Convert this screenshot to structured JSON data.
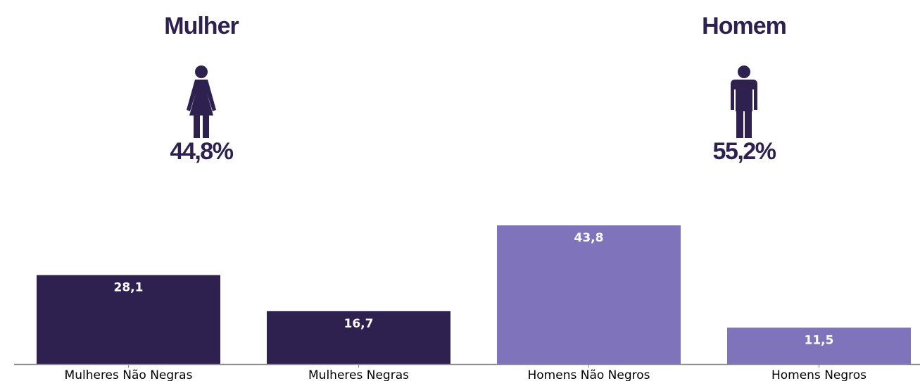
{
  "groups": [
    {
      "title": "Mulher",
      "percent": "44,8%",
      "icon": "woman-icon"
    },
    {
      "title": "Homem",
      "percent": "55,2%",
      "icon": "man-icon"
    }
  ],
  "colors": {
    "dark": "#2e2150",
    "light": "#7f73bb",
    "axis": "#888888"
  },
  "chart_data": {
    "type": "bar",
    "categories": [
      "Mulheres Não Negras",
      "Mulheres Negras",
      "Homens Não Negros",
      "Homens Negros"
    ],
    "values": [
      28.1,
      16.7,
      43.8,
      11.5
    ],
    "value_labels": [
      "28,1",
      "16,7",
      "43,8",
      "11,5"
    ],
    "bar_colors": [
      "#2e2150",
      "#2e2150",
      "#7f73bb",
      "#7f73bb"
    ],
    "title": "",
    "xlabel": "",
    "ylabel": "",
    "ylim": [
      0,
      45
    ],
    "grid": false,
    "legend": "none"
  }
}
